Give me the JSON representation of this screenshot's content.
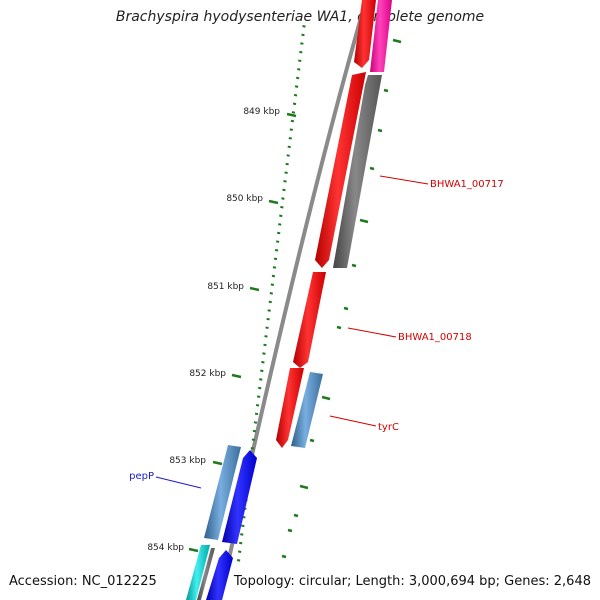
{
  "title": "Brachyspira hyodysenteriae WA1, complete genome",
  "accession": "Accession: NC_012225",
  "summary": "Topology: circular; Length: 3,000,694 bp; Genes: 2,648",
  "colors": {
    "backbone": "#8a8a8a",
    "tick": "#1f7a1f",
    "label_red": "#d40000",
    "label_blue": "#1a1acc",
    "gene_red": "#ff0000",
    "gene_gray": "#666666",
    "gene_magenta": "#ff0099",
    "gene_steelblue": "#4682b4",
    "gene_blue": "#0000ff",
    "gene_cyan": "#00cccc"
  },
  "kbp_labels": [
    "849 kbp",
    "850 kbp",
    "851 kbp",
    "852 kbp",
    "853 kbp",
    "854 kbp"
  ],
  "gene_labels": [
    {
      "text": "BHWA1_00717",
      "color": "#d40000"
    },
    {
      "text": "BHWA1_00718",
      "color": "#d40000"
    },
    {
      "text": "tyrC",
      "color": "#d40000"
    },
    {
      "text": "pepP",
      "color": "#1a1acc"
    }
  ]
}
